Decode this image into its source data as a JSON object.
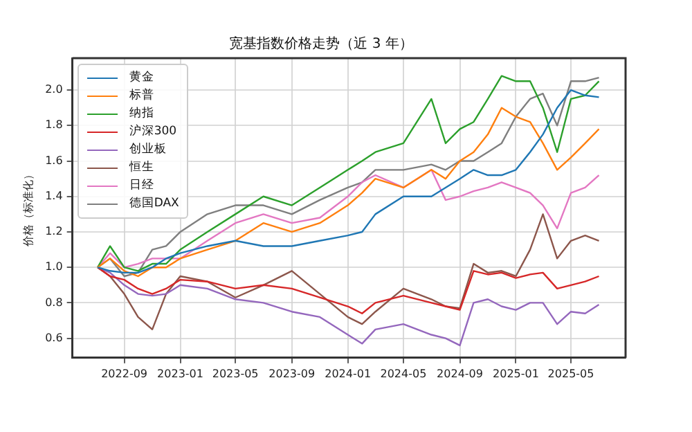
{
  "chart_data": {
    "type": "line",
    "title": "宽基指数价格走势（近 3 年）",
    "ylabel": "价格（标准化）",
    "x": [
      "2022-07-05",
      "2022-08",
      "2022-09",
      "2022-10",
      "2022-11",
      "2022-12",
      "2023-01",
      "2023-03",
      "2023-05",
      "2023-07",
      "2023-09",
      "2023-11",
      "2024-01",
      "2024-02",
      "2024-03",
      "2024-05",
      "2024-07",
      "2024-08",
      "2024-09",
      "2024-10",
      "2024-11",
      "2024-12",
      "2025-01",
      "2025-02",
      "2025-03",
      "2025-04",
      "2025-05",
      "2025-06",
      "2025-07-01"
    ],
    "series": [
      {
        "name": "黄金",
        "color": "#1f77b4",
        "values": [
          1.0,
          0.98,
          0.97,
          0.97,
          1.0,
          1.05,
          1.08,
          1.12,
          1.15,
          1.12,
          1.12,
          1.15,
          1.18,
          1.2,
          1.3,
          1.4,
          1.4,
          1.45,
          1.5,
          1.55,
          1.52,
          1.52,
          1.55,
          1.65,
          1.75,
          1.9,
          2.0,
          1.97,
          1.96
        ]
      },
      {
        "name": "标普",
        "color": "#ff7f0e",
        "values": [
          1.0,
          1.05,
          0.98,
          0.95,
          1.0,
          1.0,
          1.05,
          1.1,
          1.15,
          1.25,
          1.2,
          1.25,
          1.35,
          1.42,
          1.5,
          1.45,
          1.55,
          1.5,
          1.6,
          1.65,
          1.75,
          1.9,
          1.85,
          1.82,
          1.7,
          1.55,
          1.62,
          1.7,
          1.78
        ]
      },
      {
        "name": "纳指",
        "color": "#2ca02c",
        "values": [
          1.0,
          1.12,
          1.0,
          0.98,
          1.02,
          1.02,
          1.1,
          1.2,
          1.3,
          1.4,
          1.35,
          1.45,
          1.55,
          1.6,
          1.65,
          1.7,
          1.95,
          1.7,
          1.78,
          1.82,
          1.95,
          2.08,
          2.05,
          2.05,
          1.9,
          1.65,
          1.95,
          1.97,
          2.05
        ]
      },
      {
        "name": "沪深300",
        "color": "#d62728",
        "values": [
          1.0,
          0.95,
          0.93,
          0.88,
          0.85,
          0.88,
          0.93,
          0.92,
          0.88,
          0.9,
          0.88,
          0.83,
          0.78,
          0.74,
          0.8,
          0.84,
          0.8,
          0.78,
          0.76,
          0.98,
          0.96,
          0.97,
          0.94,
          0.96,
          0.97,
          0.88,
          0.9,
          0.92,
          0.95
        ]
      },
      {
        "name": "创业板",
        "color": "#9467bd",
        "values": [
          1.0,
          0.97,
          0.9,
          0.85,
          0.84,
          0.85,
          0.9,
          0.88,
          0.82,
          0.8,
          0.75,
          0.72,
          0.62,
          0.57,
          0.65,
          0.68,
          0.62,
          0.6,
          0.56,
          0.8,
          0.82,
          0.78,
          0.76,
          0.8,
          0.8,
          0.68,
          0.75,
          0.74,
          0.79
        ]
      },
      {
        "name": "恒生",
        "color": "#8c564b",
        "values": [
          1.0,
          0.95,
          0.85,
          0.72,
          0.65,
          0.85,
          0.95,
          0.92,
          0.83,
          0.9,
          0.98,
          0.85,
          0.72,
          0.68,
          0.75,
          0.88,
          0.82,
          0.78,
          0.77,
          1.02,
          0.97,
          0.98,
          0.95,
          1.1,
          1.3,
          1.05,
          1.15,
          1.18,
          1.15
        ]
      },
      {
        "name": "日经",
        "color": "#e377c2",
        "values": [
          1.0,
          1.08,
          1.0,
          1.02,
          1.05,
          1.05,
          1.05,
          1.15,
          1.25,
          1.3,
          1.25,
          1.28,
          1.4,
          1.48,
          1.52,
          1.45,
          1.55,
          1.38,
          1.4,
          1.43,
          1.45,
          1.48,
          1.45,
          1.42,
          1.35,
          1.22,
          1.42,
          1.45,
          1.52
        ]
      },
      {
        "name": "德国DAX",
        "color": "#7f7f7f",
        "values": [
          1.0,
          1.05,
          0.95,
          0.97,
          1.1,
          1.12,
          1.2,
          1.3,
          1.35,
          1.35,
          1.3,
          1.38,
          1.45,
          1.48,
          1.55,
          1.55,
          1.58,
          1.55,
          1.6,
          1.6,
          1.65,
          1.7,
          1.85,
          1.95,
          1.98,
          1.8,
          2.05,
          2.05,
          2.07
        ]
      }
    ],
    "xlim": [
      "2022-05-11",
      "2025-08-28"
    ],
    "xticks": [
      "2022-09",
      "2023-01",
      "2023-05",
      "2023-09",
      "2024-01",
      "2024-05",
      "2024-09",
      "2025-01",
      "2025-05"
    ],
    "ylim": [
      0.49,
      2.18
    ],
    "yticks": [
      {
        "value": 0.6,
        "label": "0.6"
      },
      {
        "value": 0.8,
        "label": "0.8"
      },
      {
        "value": 1.0,
        "label": "1.0"
      },
      {
        "value": 1.2,
        "label": "1.2"
      },
      {
        "value": 1.4,
        "label": "1.4"
      },
      {
        "value": 1.6,
        "label": "1.6"
      },
      {
        "value": 1.8,
        "label": "1.8"
      },
      {
        "value": 2.0,
        "label": "2.0"
      }
    ],
    "grid": true,
    "legend": "top left",
    "line_style": "solid",
    "marker": "none"
  }
}
